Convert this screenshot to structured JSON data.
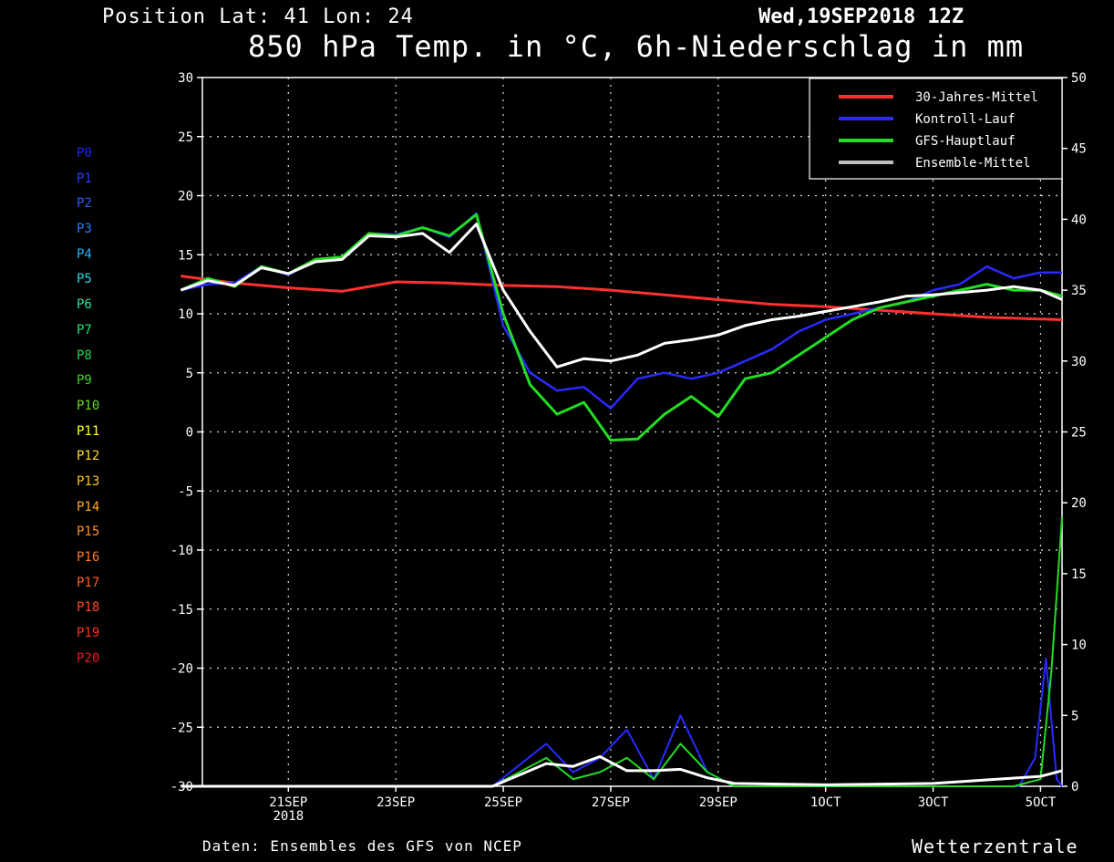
{
  "header": {
    "position": "Position  Lat: 41 Lon: 24",
    "datetime": "Wed,19SEP2018 12Z",
    "title": "850 hPa Temp. in °C, 6h-Niederschlag in mm"
  },
  "footer": {
    "source": "Daten: Ensembles des GFS von NCEP",
    "brand": "Wetterzentrale"
  },
  "members": [
    {
      "label": "P0",
      "color": "#2222ff"
    },
    {
      "label": "P1",
      "color": "#2a3cff"
    },
    {
      "label": "P2",
      "color": "#2d5cff"
    },
    {
      "label": "P3",
      "color": "#2b7dff"
    },
    {
      "label": "P4",
      "color": "#22b4ff"
    },
    {
      "label": "P5",
      "color": "#22d8e0"
    },
    {
      "label": "P6",
      "color": "#22e0a8"
    },
    {
      "label": "P7",
      "color": "#22e070"
    },
    {
      "label": "P8",
      "color": "#22d840"
    },
    {
      "label": "P9",
      "color": "#3ad822"
    },
    {
      "label": "P10",
      "color": "#6cd822"
    },
    {
      "label": "P11",
      "color": "#ffff22"
    },
    {
      "label": "P12",
      "color": "#ffd822"
    },
    {
      "label": "P13",
      "color": "#ffc022"
    },
    {
      "label": "P14",
      "color": "#ffa822"
    },
    {
      "label": "P15",
      "color": "#ff9022"
    },
    {
      "label": "P16",
      "color": "#ff7822"
    },
    {
      "label": "P17",
      "color": "#ff6022"
    },
    {
      "label": "P18",
      "color": "#ff4822"
    },
    {
      "label": "P19",
      "color": "#ff3022"
    },
    {
      "label": "P20",
      "color": "#ee1a1a"
    }
  ],
  "chart_data": {
    "type": "line",
    "x_ticks": [
      "21SEP\n2018",
      "23SEP",
      "25SEP",
      "27SEP",
      "29SEP",
      "1OCT",
      "3OCT",
      "5OCT"
    ],
    "x_tick_days": [
      2,
      4,
      6,
      8,
      10,
      12,
      14,
      16
    ],
    "xlim": [
      0.4,
      16.4
    ],
    "y_left": {
      "range": [
        -30,
        30
      ],
      "ticks": [
        -30,
        -25,
        -20,
        -15,
        -10,
        -5,
        0,
        5,
        10,
        15,
        20,
        25,
        30
      ]
    },
    "y_right": {
      "range": [
        0,
        50
      ],
      "ticks": [
        0,
        5,
        10,
        15,
        20,
        25,
        30,
        35,
        40,
        45,
        50
      ]
    },
    "grid": true,
    "legend": {
      "placement": "top-right",
      "entries": [
        {
          "name": "30-Jahres-Mittel",
          "color": "#ff3030"
        },
        {
          "name": "Kontroll-Lauf",
          "color": "#2a2aff"
        },
        {
          "name": "GFS-Hauptlauf",
          "color": "#22dd22"
        },
        {
          "name": "Ensemble-Mittel",
          "color": "#bfbfbf"
        }
      ]
    },
    "climate_mean_temp": {
      "x": [
        0,
        1,
        2,
        3,
        4,
        5,
        6,
        7,
        8,
        9,
        10,
        11,
        12,
        13,
        14,
        15,
        16.4
      ],
      "y": [
        13.2,
        12.6,
        12.2,
        11.9,
        12.7,
        12.6,
        12.4,
        12.3,
        12.0,
        11.6,
        11.2,
        10.8,
        10.6,
        10.3,
        10.0,
        9.7,
        9.5
      ]
    },
    "control_temp": {
      "x": [
        0,
        0.5,
        1,
        1.5,
        2,
        2.5,
        3,
        3.5,
        4,
        4.5,
        5,
        5.5,
        6,
        6.5,
        7,
        7.5,
        8,
        8.5,
        9,
        9.5,
        10,
        10.5,
        11,
        11.5,
        12,
        12.5,
        13,
        13.5,
        14,
        14.5,
        15,
        15.5,
        16,
        16.4
      ],
      "y": [
        12,
        12.5,
        12.6,
        14,
        13.3,
        14.5,
        14.6,
        16.8,
        16.7,
        17.3,
        16.5,
        18.5,
        9,
        5,
        3.5,
        3.8,
        2,
        4.5,
        5,
        4.5,
        5,
        6,
        7,
        8.5,
        9.5,
        10,
        10.5,
        11,
        12,
        12.5,
        14,
        13,
        13.5,
        13.5
      ]
    },
    "gfs_main_temp": {
      "x": [
        0,
        0.5,
        1,
        1.5,
        2,
        2.5,
        3,
        3.5,
        4,
        4.5,
        5,
        5.5,
        6,
        6.5,
        7,
        7.5,
        8,
        8.5,
        9,
        9.5,
        10,
        10.5,
        11,
        11.5,
        12,
        12.5,
        13,
        13.5,
        14,
        14.5,
        15,
        15.5,
        16,
        16.4
      ],
      "y": [
        12,
        13,
        12.3,
        14,
        13.4,
        14.6,
        14.8,
        16.8,
        16.6,
        17.3,
        16.6,
        18.4,
        10,
        4,
        1.5,
        2.5,
        -0.7,
        -0.6,
        1.5,
        3,
        1.3,
        4.5,
        5,
        6.5,
        8,
        9.5,
        10.5,
        11,
        11.5,
        12,
        12.5,
        12,
        12,
        11.5
      ]
    },
    "ensemble_mean_temp": {
      "x": [
        0,
        0.5,
        1,
        1.5,
        2,
        2.5,
        3,
        3.5,
        4,
        4.5,
        5,
        5.5,
        6,
        6.5,
        7,
        7.5,
        8,
        8.5,
        9,
        9.5,
        10,
        10.5,
        11,
        11.5,
        12,
        12.5,
        13,
        13.5,
        14,
        14.5,
        15,
        15.5,
        16,
        16.4
      ],
      "y": [
        12,
        12.8,
        12.4,
        13.9,
        13.4,
        14.4,
        14.6,
        16.6,
        16.5,
        16.8,
        15.2,
        17.6,
        12,
        8.5,
        5.5,
        6.2,
        6,
        6.5,
        7.5,
        7.8,
        8.2,
        9,
        9.5,
        9.8,
        10.2,
        10.6,
        11,
        11.5,
        11.6,
        11.8,
        12,
        12.3,
        12,
        11.2
      ]
    },
    "ensemble_mean_precip": {
      "x": [
        0,
        5.8,
        6.3,
        6.8,
        7.3,
        7.8,
        8.3,
        8.8,
        9.3,
        9.8,
        10.3,
        12,
        14,
        16,
        16.4
      ],
      "y": [
        0,
        0,
        0.8,
        1.6,
        1.4,
        2.1,
        1.1,
        1.1,
        1.2,
        0.6,
        0.2,
        0.1,
        0.2,
        0.7,
        1.1
      ]
    },
    "gfs_main_precip": {
      "x": [
        0,
        5.8,
        6.3,
        6.8,
        7.3,
        7.8,
        8.3,
        8.8,
        9.3,
        9.8,
        10.3,
        15.5,
        16,
        16.2,
        16.4
      ],
      "y": [
        0,
        0,
        1,
        2,
        0.5,
        1,
        2,
        0.5,
        3,
        1,
        0,
        0,
        0.5,
        8,
        19
      ]
    },
    "control_precip": {
      "x": [
        0,
        5.8,
        6.3,
        6.8,
        7.3,
        7.8,
        8.3,
        8.8,
        9.3,
        9.8,
        10.3,
        15.6,
        15.9,
        16.1,
        16.3,
        16.4
      ],
      "y": [
        0,
        0,
        1.5,
        3,
        1,
        2,
        4,
        0.5,
        5,
        1,
        0,
        0,
        2,
        9,
        0.5,
        0
      ]
    }
  }
}
